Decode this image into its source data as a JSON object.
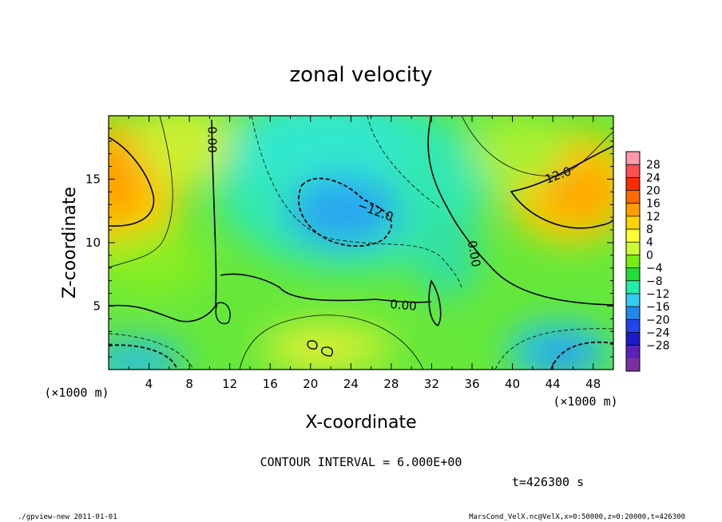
{
  "chart_data": {
    "type": "heatmap",
    "title": "zonal velocity",
    "xlabel": "X-coordinate",
    "ylabel": "Z-coordinate",
    "x_unit_label": "(×1000 m)",
    "z_unit_label": "(×1000 m)",
    "xlim": [
      0,
      50
    ],
    "ylim": [
      0,
      20
    ],
    "x_ticks": [
      "4",
      "8",
      "12",
      "16",
      "20",
      "24",
      "28",
      "32",
      "36",
      "40",
      "44",
      "48"
    ],
    "y_ticks": [
      "5",
      "10",
      "15"
    ],
    "colorbar": {
      "labels": [
        "28",
        "24",
        "20",
        "16",
        "12",
        "8",
        "4",
        "0",
        "−4",
        "−8",
        "−12",
        "−16",
        "−20",
        "−24",
        "−28"
      ],
      "colors": [
        "#ff99aa",
        "#ff5050",
        "#ff2a00",
        "#ff6a00",
        "#ff9f00",
        "#ffd400",
        "#ffff33",
        "#ccff33",
        "#77ee11",
        "#22dd33",
        "#22eeaa",
        "#33ccee",
        "#2288ee",
        "#2244ee",
        "#1a1acc",
        "#5a22bb",
        "#7a30a0"
      ]
    },
    "contour_labels": [
      "0.00",
      "−12.0",
      "0.00",
      "0.00",
      "12.0"
    ],
    "contour_interval_text": "CONTOUR INTERVAL = 6.000E+00",
    "time_text": "t=426300 s",
    "features": [
      {
        "x": 2,
        "z": 15.5,
        "value": 14
      },
      {
        "x": 24,
        "z": 12,
        "value": -15
      },
      {
        "x": 45,
        "z": 13.5,
        "value": 15
      },
      {
        "x": 3,
        "z": 1.2,
        "value": -14
      },
      {
        "x": 45.5,
        "z": 1.5,
        "value": -14
      },
      {
        "x": 22,
        "z": 2,
        "value": 11
      },
      {
        "x": 24,
        "z": 16,
        "value": -8
      },
      {
        "x": 36,
        "z": 5,
        "value": -3
      }
    ]
  },
  "footer": {
    "left": "./gpview-new   2011-01-01",
    "right": "MarsCond_VelX.nc@VelX,x=0:50000,z=0:20000,t=426300"
  }
}
